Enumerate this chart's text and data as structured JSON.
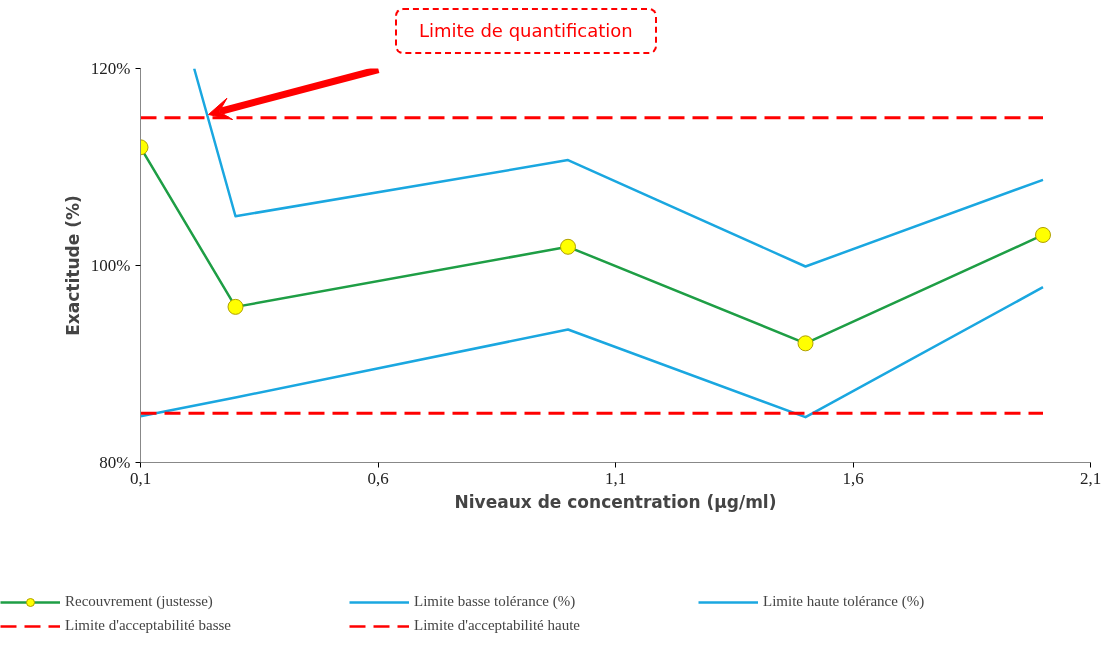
{
  "chart_data": {
    "type": "line",
    "xlabel": "Niveaux de concentration (µg/ml)",
    "ylabel": "Exactitude (%)",
    "xlim": [
      0.1,
      2.1
    ],
    "xticks": [
      {
        "value": 0.1,
        "label": "0,1"
      },
      {
        "value": 0.6,
        "label": "0,6"
      },
      {
        "value": 1.1,
        "label": "1,1"
      },
      {
        "value": 1.6,
        "label": "1,6"
      },
      {
        "value": 2.1,
        "label": "2,1"
      }
    ],
    "ylim": [
      80,
      120
    ],
    "yticks": [
      {
        "value": 80,
        "label": "80%"
      },
      {
        "value": 100,
        "label": "100%"
      },
      {
        "value": 120,
        "label": "120%"
      }
    ],
    "grid": false,
    "legend": "bottom",
    "line_style": "solid",
    "series": [
      {
        "name": "Recouvrement (justesse)",
        "color": "#1e9e45",
        "marker": "circle",
        "x": [
          0.1,
          0.3,
          1.0,
          1.5,
          2.0
        ],
        "values": [
          112,
          95.8,
          101.9,
          92.1,
          103.1
        ]
      },
      {
        "name": "Limite basse tolérance (%)",
        "color": "#1aa7e0",
        "x": [
          0.1,
          0.3,
          1.0,
          1.5,
          2.0
        ],
        "values": [
          84.7,
          86.6,
          93.5,
          84.6,
          97.8
        ]
      },
      {
        "name": "Limite haute tolérance (%)",
        "color": "#1aa7e0",
        "x": [
          0.213,
          0.3,
          1.0,
          1.5,
          2.0
        ],
        "values": [
          120,
          105.0,
          110.7,
          99.9,
          108.7
        ]
      },
      {
        "name": "Limite d'acceptabilité basse",
        "color": "#ff0000",
        "line_style": "dashed",
        "x": [
          0.1,
          2.0
        ],
        "values": [
          85,
          85
        ]
      },
      {
        "name": "Limite d'acceptabilité haute",
        "color": "#ff0000",
        "line_style": "dashed",
        "x": [
          0.1,
          2.0
        ],
        "values": [
          115,
          115
        ]
      }
    ],
    "annotations": [
      "Limite de quantification"
    ]
  }
}
